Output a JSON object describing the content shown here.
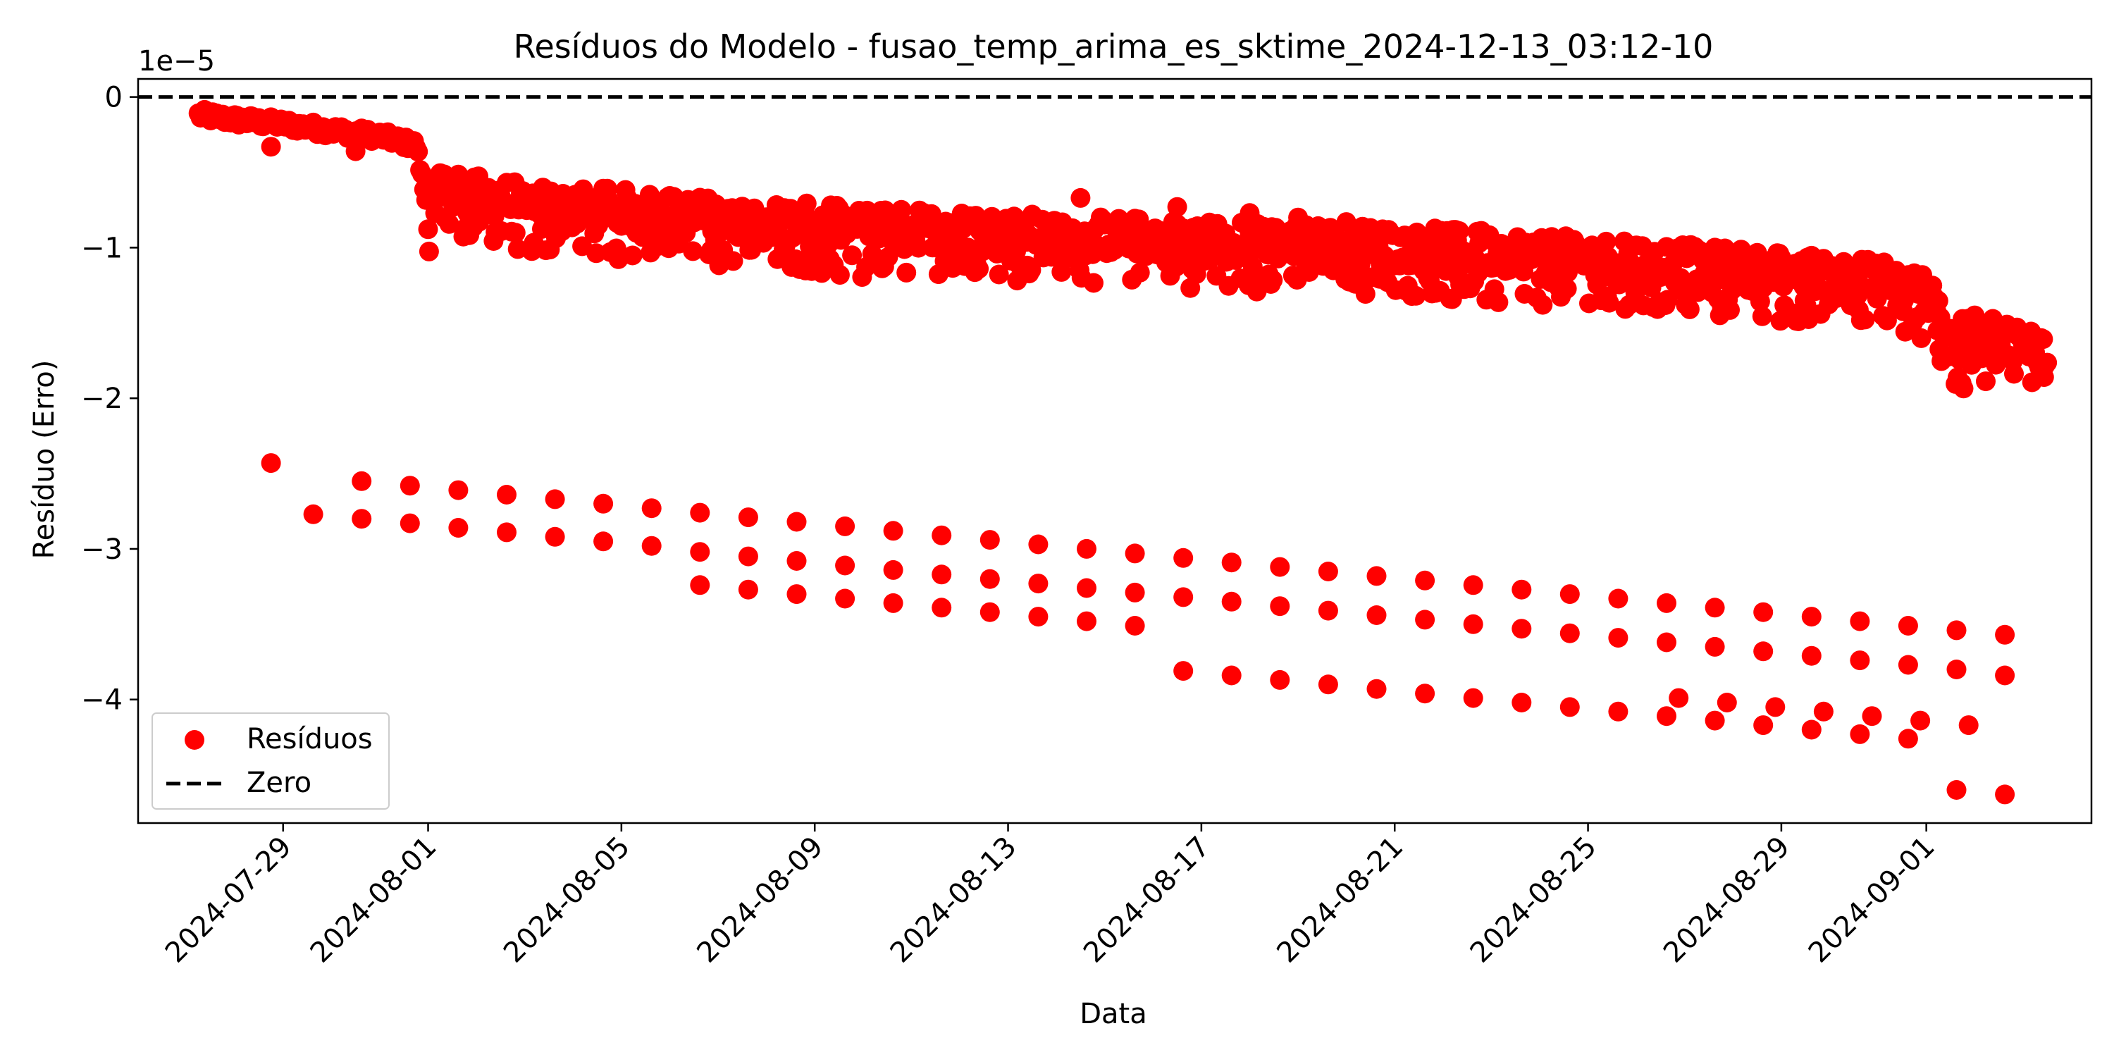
{
  "chart_data": {
    "type": "scatter",
    "title": "Resíduos do Modelo - fusao_temp_arima_es_sktime_2024-12-13_03:12-10",
    "xlabel": "Data",
    "ylabel": "Resíduo (Erro)",
    "y_scale_label": "1e−5",
    "y_scale_factor": 1e-05,
    "x_tick_labels": [
      "2024-07-29",
      "2024-08-01",
      "2024-08-05",
      "2024-08-09",
      "2024-08-13",
      "2024-08-17",
      "2024-08-21",
      "2024-08-25",
      "2024-08-29",
      "2024-09-01"
    ],
    "y_ticks": [
      0,
      -1,
      -2,
      -3,
      -4
    ],
    "y_tick_labels": [
      "0",
      "−1",
      "−2",
      "−3",
      "−4"
    ],
    "xlim": [
      "2024-07-26T00:00",
      "2024-09-04T10:00"
    ],
    "ylim": [
      -4.82,
      0.12
    ],
    "grid": false,
    "legend_position": "lower-left",
    "colors": {
      "residuals": "#ff0000",
      "zero_line": "#000000"
    },
    "legend": [
      {
        "label": "Resíduos",
        "marker": "dot"
      },
      {
        "label": "Zero",
        "marker": "dashed-line"
      }
    ],
    "zero_line": {
      "y": 0,
      "style": "dashed"
    },
    "band_main": [
      [
        "2024-07-27T06:00",
        -0.12
      ],
      [
        "2024-07-28T00:00",
        -0.15
      ],
      [
        "2024-07-29T00:00",
        -0.18
      ],
      [
        "2024-07-30T00:00",
        -0.22
      ],
      [
        "2024-07-31T00:00",
        -0.26
      ],
      [
        "2024-07-31T18:00",
        -0.32
      ],
      [
        "2024-08-01T00:00",
        -0.75
      ],
      [
        "2024-08-01T06:00",
        -0.55
      ],
      [
        "2024-08-02T00:00",
        -0.65
      ],
      [
        "2024-08-03T00:00",
        -0.7
      ],
      [
        "2024-08-05T00:00",
        -0.74
      ],
      [
        "2024-08-07T00:00",
        -0.8
      ],
      [
        "2024-08-10T00:00",
        -0.86
      ],
      [
        "2024-08-13T00:00",
        -0.9
      ],
      [
        "2024-08-16T00:00",
        -0.93
      ],
      [
        "2024-08-19T00:00",
        -0.97
      ],
      [
        "2024-08-22T00:00",
        -1.0
      ],
      [
        "2024-08-25T00:00",
        -1.06
      ],
      [
        "2024-08-28T00:00",
        -1.13
      ],
      [
        "2024-08-31T00:00",
        -1.2
      ],
      [
        "2024-09-01T00:00",
        -1.3
      ],
      [
        "2024-09-01T12:00",
        -1.6
      ],
      [
        "2024-09-02T12:00",
        -1.6
      ],
      [
        "2024-09-03T12:00",
        -1.68
      ]
    ],
    "isolated_points": [
      [
        "2024-07-28T18:00",
        -2.43
      ],
      [
        "2024-07-28T18:00",
        -0.33
      ],
      [
        "2024-07-30T12:00",
        -0.36
      ],
      [
        "2024-08-08T18:00",
        -1.09
      ],
      [
        "2024-08-14T12:00",
        -0.67
      ],
      [
        "2024-08-16T12:00",
        -0.73
      ],
      [
        "2024-08-18T00:00",
        -0.77
      ],
      [
        "2024-08-19T00:00",
        -0.8
      ],
      [
        "2024-08-20T00:00",
        -0.83
      ],
      [
        "2024-09-02T00:00",
        -1.45
      ]
    ],
    "spikes_upper": {
      "start": "2024-07-29T15:00",
      "step_hours": 24,
      "values": [
        -2.77,
        -2.8,
        -2.83,
        -2.86,
        -2.89,
        -2.92,
        -2.95,
        -2.98,
        -3.02,
        -3.05,
        -3.08,
        -3.11,
        -3.14,
        -3.17,
        -3.2,
        -3.23,
        -3.26,
        -3.29,
        -3.32,
        -3.35,
        -3.38,
        -3.41,
        -3.44,
        -3.47,
        -3.5,
        -3.53,
        -3.56,
        -3.59,
        -3.62,
        -3.65,
        -3.68,
        -3.71,
        -3.74,
        -3.77,
        -3.8,
        -3.84
      ]
    },
    "spikes_upper2": {
      "start": "2024-07-30T15:00",
      "step_hours": 24,
      "values": [
        -2.55,
        -2.58,
        -2.61,
        -2.64,
        -2.67,
        -2.7,
        -2.73,
        -2.76,
        -2.79,
        -2.82,
        -2.85,
        -2.88,
        -2.91,
        -2.94,
        -2.97,
        -3.0,
        -3.03,
        -3.06,
        -3.09,
        -3.12,
        -3.15,
        -3.18,
        -3.21,
        -3.24,
        -3.27,
        -3.3,
        -3.33,
        -3.36,
        -3.39,
        -3.42,
        -3.45,
        -3.48,
        -3.51,
        -3.54,
        -3.57
      ]
    },
    "spikes_lower": {
      "start": "2024-08-06T15:00",
      "step_hours": 24,
      "values": [
        -3.24,
        -3.27,
        -3.3,
        -3.33,
        -3.36,
        -3.39,
        -3.42,
        -3.45,
        -3.48,
        -3.51,
        -3.81,
        -3.84,
        -3.87,
        -3.9,
        -3.93,
        -3.96,
        -3.99,
        -4.02,
        -4.05,
        -4.08,
        -4.11,
        -4.14,
        -4.17,
        -4.2,
        -4.23,
        -4.26,
        -4.6,
        -4.63
      ]
    },
    "spikes_lower2": {
      "start": "2024-08-26T21:00",
      "step_hours": 24,
      "values": [
        -3.99,
        -4.02,
        -4.05,
        -4.08,
        -4.11,
        -4.14,
        -4.17
      ]
    }
  }
}
